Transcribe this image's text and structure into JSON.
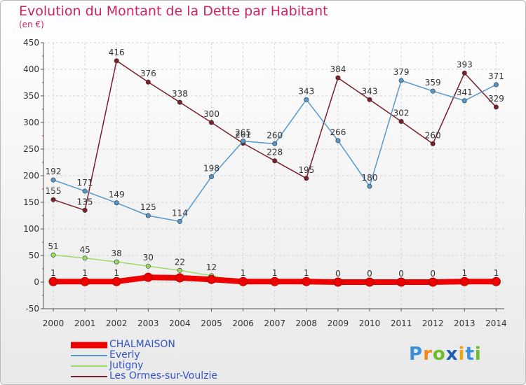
{
  "title": "Evolution du Montant de la Dette par Habitant",
  "subtitle": "(en €)",
  "logo_text": "Proxiti",
  "chart_data": {
    "type": "line",
    "x": [
      "2000",
      "2001",
      "2002",
      "2003",
      "2004",
      "2005",
      "2006",
      "2007",
      "2008",
      "2009",
      "2010",
      "2011",
      "2012",
      "2013",
      "2014"
    ],
    "ylim": [
      -50,
      450
    ],
    "yticks": [
      -50,
      0,
      50,
      100,
      150,
      200,
      250,
      300,
      350,
      400,
      450
    ],
    "grid": true,
    "legend_position": "bottom-left",
    "series": [
      {
        "name": "Les Ormes-sur-Voulzie",
        "color": "#7a1f2b",
        "width": 1.5,
        "values": [
          155,
          135,
          416,
          376,
          338,
          300,
          261,
          228,
          195,
          384,
          343,
          302,
          260,
          393,
          329
        ],
        "labels": [
          "155",
          "135",
          "416",
          "376",
          "338",
          "300",
          "261",
          "228",
          "195",
          "384",
          "343",
          "302",
          "260",
          "393",
          "329"
        ]
      },
      {
        "name": "Everly",
        "color": "#5599cc",
        "width": 1.5,
        "values": [
          192,
          171,
          149,
          125,
          114,
          198,
          265,
          260,
          343,
          266,
          180,
          379,
          359,
          341,
          371
        ],
        "labels": [
          "192",
          "171",
          "149",
          "125",
          "114",
          "198",
          "265",
          "260",
          "343",
          "266",
          "180",
          "379",
          "359",
          "341",
          "371"
        ]
      },
      {
        "name": "Jutigny",
        "color": "#99dd66",
        "width": 1.5,
        "values": [
          51,
          45,
          38,
          30,
          22,
          12,
          1,
          1,
          1,
          0,
          0,
          0,
          0,
          1,
          1
        ],
        "labels": [
          "51",
          "45",
          "38",
          "30",
          "22",
          "12",
          "1",
          "1",
          "1",
          "0",
          "0",
          "0",
          "0",
          "1",
          "1"
        ]
      },
      {
        "name": "CHALMAISON",
        "color": "#ee0000",
        "width": 8,
        "values": [
          1,
          1,
          1,
          9,
          8,
          5,
          1,
          1,
          1,
          0,
          0,
          0,
          0,
          1,
          1
        ],
        "labels": [
          "1",
          "1",
          "1",
          "",
          "",
          "",
          "",
          "",
          "",
          "",
          "",
          "",
          "",
          "",
          ""
        ]
      }
    ]
  },
  "legend": [
    {
      "name": "CHALMAISON",
      "color": "#ee0000",
      "thickness": 9
    },
    {
      "name": "Everly",
      "color": "#5599cc",
      "thickness": 2
    },
    {
      "name": "Jutigny",
      "color": "#99dd66",
      "thickness": 2
    },
    {
      "name": "Les Ormes-sur-Voulzie",
      "color": "#7a1f2b",
      "thickness": 2
    }
  ]
}
